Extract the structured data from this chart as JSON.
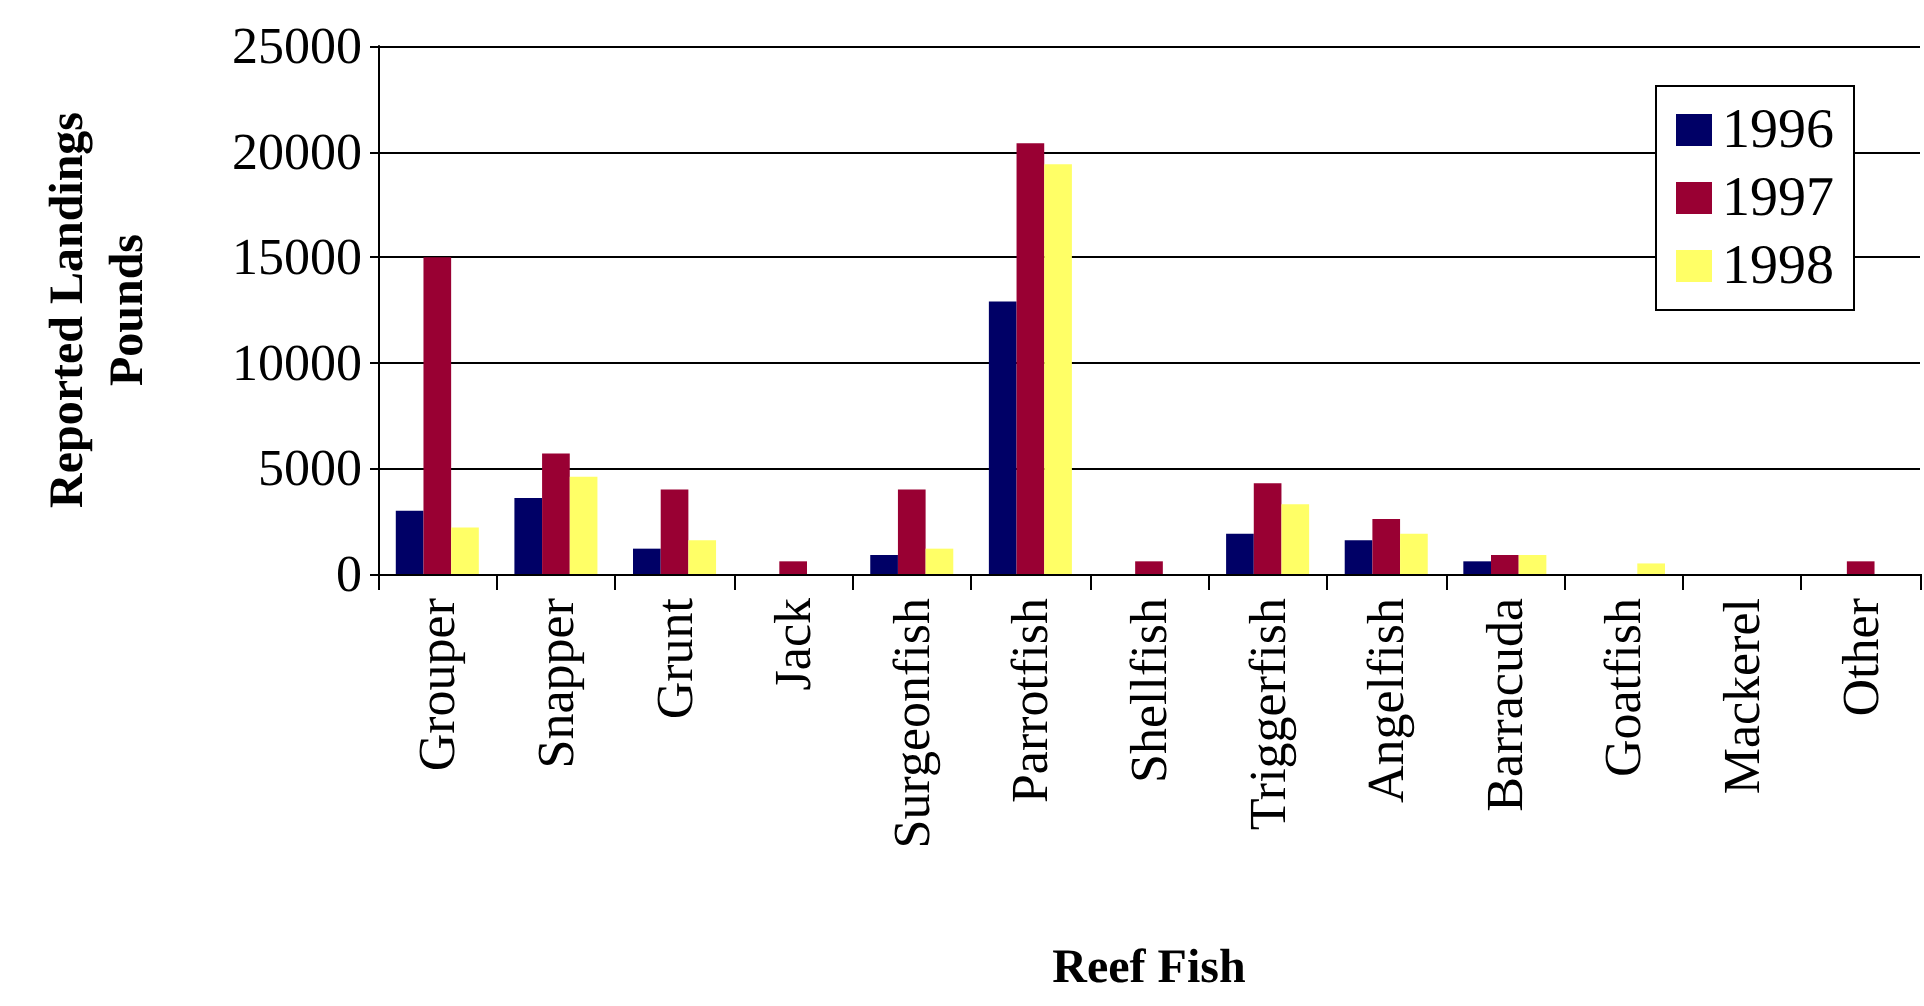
{
  "chart_data": {
    "type": "bar",
    "xlabel": "Reef Fish",
    "ylabel": "Reported Landings\nPounds",
    "categories": [
      "Grouper",
      "Snapper",
      "Grunt",
      "Jack",
      "Surgeonfish",
      "Parrotfish",
      "Shellfish",
      "Triggerfish",
      "Angelfish",
      "Barracuda",
      "Goatfish",
      "Mackerel",
      "Other"
    ],
    "series": [
      {
        "name": "1996",
        "color": "#000066",
        "values": [
          3000,
          3600,
          1200,
          0,
          900,
          12900,
          0,
          1900,
          1600,
          600,
          0,
          0,
          0
        ]
      },
      {
        "name": "1997",
        "color": "#990033",
        "values": [
          15000,
          5700,
          4000,
          600,
          4000,
          20400,
          600,
          4300,
          2600,
          900,
          0,
          0,
          600
        ]
      },
      {
        "name": "1998",
        "color": "#ffff66",
        "values": [
          2200,
          4600,
          1600,
          0,
          1200,
          19400,
          0,
          3300,
          1900,
          900,
          500,
          0,
          0
        ]
      }
    ],
    "ylim": [
      0,
      25000
    ],
    "yticks": [
      0,
      5000,
      10000,
      15000,
      20000,
      25000
    ],
    "grid": "y",
    "legend": "top right"
  }
}
